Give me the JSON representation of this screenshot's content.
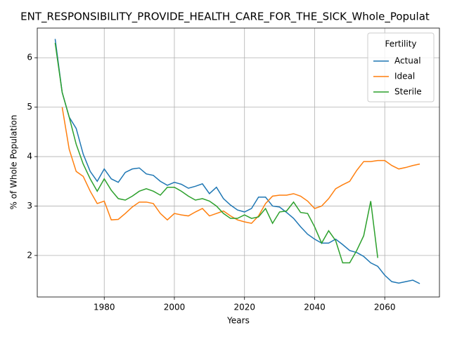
{
  "chart_data": {
    "type": "line",
    "title": "ENT_RESPONSIBILITY_PROVIDE_HEALTH_CARE_FOR_THE_SICK_Whole_Populat",
    "x_label": "Years",
    "y_label": "% of Whole Population",
    "legend_title": "Fertility",
    "legend": "upper right",
    "grid": true,
    "x": [
      1966,
      1968,
      1970,
      1972,
      1974,
      1976,
      1978,
      1980,
      1982,
      1984,
      1986,
      1988,
      1990,
      1992,
      1994,
      1996,
      1998,
      2000,
      2002,
      2004,
      2006,
      2008,
      2010,
      2012,
      2014,
      2016,
      2018,
      2020,
      2022,
      2024,
      2026,
      2028,
      2030,
      2032,
      2034,
      2036,
      2038,
      2040,
      2042,
      2044,
      2046,
      2048,
      2050,
      2052,
      2054,
      2056,
      2058,
      2060,
      2062,
      2064,
      2066,
      2068,
      2070
    ],
    "series": [
      {
        "name": "Actual",
        "color": "#1f77b4",
        "values": [
          6.38,
          5.3,
          4.8,
          4.57,
          4.05,
          3.7,
          3.5,
          3.75,
          3.55,
          3.48,
          3.68,
          3.75,
          3.77,
          3.65,
          3.62,
          3.5,
          3.42,
          3.48,
          3.44,
          3.36,
          3.4,
          3.45,
          3.25,
          3.38,
          3.15,
          3.02,
          2.92,
          2.88,
          2.95,
          3.18,
          3.18,
          3.0,
          2.98,
          2.87,
          2.75,
          2.58,
          2.43,
          2.33,
          2.25,
          2.25,
          2.33,
          2.22,
          2.1,
          2.06,
          1.98,
          1.85,
          1.78,
          1.6,
          1.47,
          1.44,
          1.47,
          1.5,
          1.43
        ]
      },
      {
        "name": "Ideal",
        "color": "#ff7f0e",
        "values": [
          null,
          5.0,
          4.15,
          3.7,
          3.6,
          3.3,
          3.05,
          3.1,
          2.72,
          2.73,
          2.85,
          2.98,
          3.08,
          3.08,
          3.05,
          2.85,
          2.72,
          2.85,
          2.82,
          2.8,
          2.88,
          2.95,
          2.8,
          2.85,
          2.9,
          2.8,
          2.72,
          2.68,
          2.65,
          2.8,
          3.05,
          3.2,
          3.22,
          3.22,
          3.25,
          3.2,
          3.1,
          2.95,
          3.0,
          3.15,
          3.35,
          3.43,
          3.5,
          3.72,
          3.9,
          3.9,
          3.92,
          3.92,
          3.82,
          3.75,
          3.78,
          3.82,
          3.85
        ]
      },
      {
        "name": "Sterile",
        "color": "#2ca02c",
        "values": [
          6.3,
          5.3,
          4.8,
          4.25,
          3.85,
          3.55,
          3.3,
          3.55,
          3.32,
          3.15,
          3.12,
          3.2,
          3.3,
          3.35,
          3.3,
          3.22,
          3.38,
          3.38,
          3.3,
          3.2,
          3.12,
          3.15,
          3.1,
          3.0,
          2.85,
          2.75,
          2.75,
          2.82,
          2.75,
          2.78,
          2.95,
          2.65,
          2.88,
          2.9,
          3.08,
          2.87,
          2.85,
          2.58,
          2.25,
          2.5,
          2.3,
          1.85,
          1.85,
          2.1,
          2.4,
          3.1,
          1.95,
          null,
          null,
          null,
          null,
          null,
          null
        ]
      }
    ],
    "xlim": [
      1960.9,
      2075.6
    ],
    "xticks": [
      1980,
      2000,
      2020,
      2040,
      2060
    ],
    "ylim": [
      1.16,
      6.6
    ],
    "yticks": [
      2,
      3,
      4,
      5,
      6
    ]
  }
}
